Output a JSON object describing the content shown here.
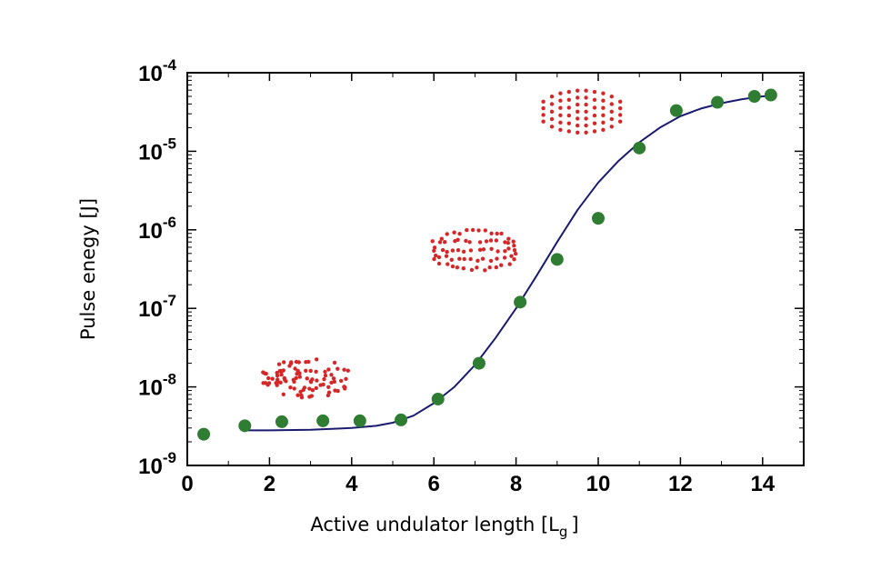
{
  "chart_data": {
    "type": "scatter",
    "title": "",
    "xlabel_main": "Active undulator length [L",
    "xlabel_sub": "g",
    "xlabel_close": "]",
    "ylabel": "Pulse enegy [J]",
    "xlim": [
      0,
      15
    ],
    "ylim_exponent": [
      -9,
      -4
    ],
    "y_scale": "log",
    "x_ticks": [
      0,
      2,
      4,
      6,
      8,
      10,
      12,
      14
    ],
    "x_tick_labels": [
      "0",
      "2",
      "4",
      "6",
      "8",
      "10",
      "12",
      "14"
    ],
    "y_ticks": [
      {
        "base": "10",
        "exp": "-9",
        "value": 1e-09
      },
      {
        "base": "10",
        "exp": "-8",
        "value": 1e-08
      },
      {
        "base": "10",
        "exp": "-7",
        "value": 1e-07
      },
      {
        "base": "10",
        "exp": "-6",
        "value": 1e-06
      },
      {
        "base": "10",
        "exp": "-5",
        "value": 1e-05
      },
      {
        "base": "10",
        "exp": "-4",
        "value": 0.0001
      }
    ],
    "grid": false,
    "series": [
      {
        "kind": "measured",
        "color": "#2e7d32",
        "points": [
          {
            "x": 0.4,
            "y": 2.5e-09
          },
          {
            "x": 1.4,
            "y": 3.2e-09
          },
          {
            "x": 2.3,
            "y": 3.6e-09
          },
          {
            "x": 3.3,
            "y": 3.7e-09
          },
          {
            "x": 4.2,
            "y": 3.7e-09
          },
          {
            "x": 5.2,
            "y": 3.8e-09
          },
          {
            "x": 6.1,
            "y": 7e-09
          },
          {
            "x": 7.1,
            "y": 2e-08
          },
          {
            "x": 8.1,
            "y": 1.2e-07
          },
          {
            "x": 9.0,
            "y": 4.2e-07
          },
          {
            "x": 10.0,
            "y": 1.4e-06
          },
          {
            "x": 11.0,
            "y": 1.1e-05
          },
          {
            "x": 11.9,
            "y": 3.3e-05
          },
          {
            "x": 12.9,
            "y": 4.2e-05
          },
          {
            "x": 13.8,
            "y": 5e-05
          },
          {
            "x": 14.2,
            "y": 5.2e-05
          }
        ]
      },
      {
        "kind": "fit",
        "color": "#1a1a6e",
        "points": [
          {
            "x": 1.4,
            "y": 2.8e-09
          },
          {
            "x": 2.0,
            "y": 2.8e-09
          },
          {
            "x": 3.0,
            "y": 2.85e-09
          },
          {
            "x": 4.0,
            "y": 3e-09
          },
          {
            "x": 4.6,
            "y": 3.2e-09
          },
          {
            "x": 5.0,
            "y": 3.5e-09
          },
          {
            "x": 5.5,
            "y": 4.3e-09
          },
          {
            "x": 6.0,
            "y": 6.2e-09
          },
          {
            "x": 6.5,
            "y": 1e-08
          },
          {
            "x": 7.0,
            "y": 1.9e-08
          },
          {
            "x": 7.5,
            "y": 4.2e-08
          },
          {
            "x": 8.0,
            "y": 1e-07
          },
          {
            "x": 8.5,
            "y": 2.6e-07
          },
          {
            "x": 9.0,
            "y": 7e-07
          },
          {
            "x": 9.5,
            "y": 1.8e-06
          },
          {
            "x": 10.0,
            "y": 4e-06
          },
          {
            "x": 10.5,
            "y": 7.6e-06
          },
          {
            "x": 11.0,
            "y": 1.3e-05
          },
          {
            "x": 11.5,
            "y": 2e-05
          },
          {
            "x": 12.0,
            "y": 2.8e-05
          },
          {
            "x": 12.5,
            "y": 3.5e-05
          },
          {
            "x": 13.0,
            "y": 4.1e-05
          },
          {
            "x": 13.5,
            "y": 4.6e-05
          },
          {
            "x": 14.0,
            "y": 5e-05
          },
          {
            "x": 14.3,
            "y": 5.1e-05
          }
        ]
      }
    ],
    "annotations": [
      {
        "name": "electron-bunch-uniform",
        "pattern": "random",
        "color": "#d62728",
        "x_center": 2.9,
        "y_center": 1.3e-08
      },
      {
        "name": "electron-bunch-partial",
        "pattern": "partial",
        "color": "#d62728",
        "x_center": 7.0,
        "y_center": 5.5e-07
      },
      {
        "name": "electron-bunch-microbunched",
        "pattern": "slices",
        "color": "#d62728",
        "x_center": 9.6,
        "y_center": 3.2e-05
      }
    ]
  }
}
